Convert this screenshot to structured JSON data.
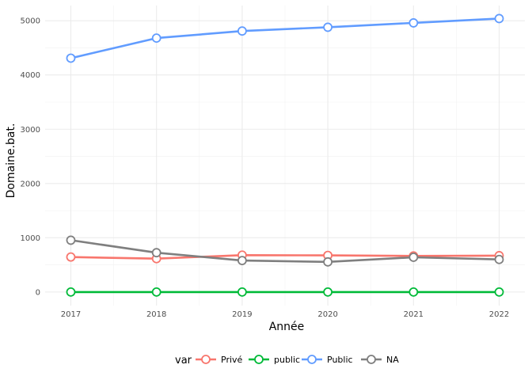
{
  "chart_data": {
    "type": "line",
    "xlabel": "Année",
    "ylabel": "Domaine.bat.",
    "x": [
      2017,
      2018,
      2019,
      2020,
      2021,
      2022
    ],
    "x_ticks": [
      "2017",
      "2018",
      "2019",
      "2020",
      "2021",
      "2022"
    ],
    "y_ticks": [
      "0",
      "1000",
      "2000",
      "3000",
      "4000",
      "5000"
    ],
    "xlim": [
      2016.7,
      2022.3
    ],
    "ylim": [
      -250,
      5280
    ],
    "grid": true,
    "legend": {
      "title": "var",
      "position": "bottom"
    },
    "series": [
      {
        "name": "Privé",
        "color": "#F8766D",
        "values": [
          645,
          615,
          680,
          675,
          665,
          670
        ]
      },
      {
        "name": "public",
        "color": "#00BA38",
        "values": [
          0,
          0,
          0,
          0,
          0,
          0
        ]
      },
      {
        "name": "Public",
        "color": "#619CFF",
        "values": [
          4310,
          4680,
          4810,
          4880,
          4960,
          5040
        ]
      },
      {
        "name": "NA",
        "color": "#7F7F7F",
        "values": [
          955,
          725,
          580,
          555,
          640,
          600
        ]
      }
    ]
  }
}
